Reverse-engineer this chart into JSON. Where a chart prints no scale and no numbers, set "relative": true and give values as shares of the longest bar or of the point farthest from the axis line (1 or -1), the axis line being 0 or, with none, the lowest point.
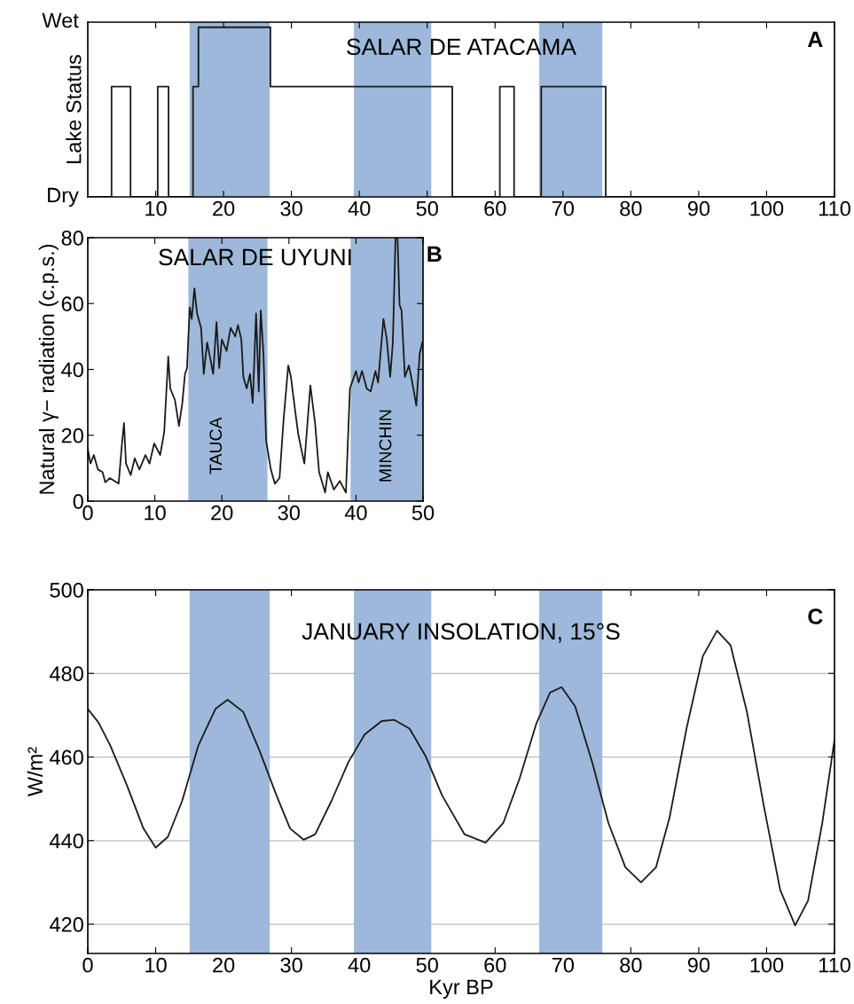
{
  "chart_data": [
    {
      "type": "line",
      "title": "SALAR DE ATACAMA",
      "ylabel": "Lake Status",
      "series": [
        {
          "color": "#1a1a1a",
          "x": [
            0,
            3.5,
            3.5,
            6.3,
            6.3,
            10.3,
            10.3,
            11.9,
            11.9,
            15.5,
            15.5,
            16.3,
            16.3,
            26.9,
            26.9,
            53.7,
            53.7,
            60.7,
            60.7,
            62.8,
            62.8,
            66.8,
            66.8,
            76.3,
            76.3,
            110
          ],
          "values": [
            0,
            0,
            0.65,
            0.65,
            0,
            0,
            0.65,
            0.65,
            0,
            0,
            0.65,
            0.65,
            1,
            1,
            0.65,
            0.65,
            0,
            0,
            0.65,
            0.65,
            0,
            0,
            0.65,
            0.65,
            0,
            0
          ]
        }
      ],
      "relative": true,
      "xlim": [
        0,
        110
      ],
      "xticks": [
        10,
        20,
        30,
        40,
        50,
        60,
        70,
        80,
        90,
        100,
        110
      ],
      "bands": [
        {
          "axis": "x",
          "from": 15.0,
          "to": 26.8,
          "color": "#9db8da"
        },
        {
          "axis": "x",
          "from": 39.2,
          "to": 50.6,
          "color": "#9db8da"
        },
        {
          "axis": "x",
          "from": 66.5,
          "to": 75.8,
          "color": "#9db8da"
        }
      ],
      "annotations": [
        "A",
        "Dry",
        "Wet"
      ]
    },
    {
      "type": "line",
      "title": "SALAR DE UYUNI",
      "ylabel": "Natural γ− radiation (c.p.s.)",
      "series": [
        {
          "color": "#1a1a1a",
          "x": [
            0,
            0.4,
            0.9,
            1.5,
            2.2,
            2.6,
            3.3,
            3.96,
            4.6,
            5.1,
            5.4,
            5.7,
            6.4,
            7.0,
            7.7,
            8.6,
            9.2,
            9.9,
            10.8,
            11.4,
            12.0,
            12.3,
            13.0,
            13.6,
            14.1,
            14.5,
            14.8,
            15.2,
            15.5,
            15.9,
            16.3,
            16.9,
            17.3,
            17.8,
            18.3,
            18.7,
            19.2,
            19.6,
            20.0,
            20.7,
            21.3,
            22.0,
            22.4,
            22.9,
            23.2,
            23.7,
            24.2,
            24.6,
            25.1,
            25.5,
            25.8,
            26.2,
            26.6,
            27.3,
            27.9,
            28.6,
            29.2,
            29.9,
            30.3,
            31.0,
            31.4,
            32.3,
            33.2,
            33.9,
            34.5,
            35.4,
            35.8,
            36.7,
            37.6,
            38.5,
            39.1,
            40.0,
            40.4,
            40.9,
            41.6,
            42.2,
            42.9,
            43.3,
            44.1,
            44.6,
            45.1,
            45.5,
            45.9,
            46.2,
            46.5,
            46.8,
            47.3,
            47.9,
            48.4,
            49.0,
            49.5,
            49.9
          ],
          "values": [
            15.8,
            11.4,
            14,
            9.6,
            8.8,
            5.7,
            7,
            6.1,
            5.3,
            17.5,
            23.7,
            11.4,
            7.9,
            13,
            9.6,
            14,
            11.4,
            17.5,
            14,
            21,
            43.9,
            34.2,
            30.7,
            22.8,
            29.8,
            38.6,
            40.4,
            58.8,
            55.3,
            64.6,
            57,
            52.6,
            38.6,
            48.2,
            43,
            38.6,
            54.4,
            40.4,
            49.1,
            45.6,
            52.6,
            50,
            53.5,
            49.1,
            37.7,
            34.2,
            38.6,
            29.8,
            57,
            33.3,
            57.9,
            44.7,
            18.4,
            9.6,
            5.3,
            7,
            24.6,
            41.2,
            37.7,
            26.3,
            20.2,
            11.4,
            35.1,
            23.7,
            8.8,
            2.6,
            8.8,
            3.5,
            6.1,
            2.6,
            34.2,
            39.5,
            36,
            39.5,
            34.2,
            33.3,
            39.5,
            36,
            55.3,
            49.1,
            37.7,
            48.2,
            80,
            80,
            59.6,
            57.9,
            37.7,
            41.2,
            36,
            29,
            44.7,
            48.2
          ]
        }
      ],
      "xlim": [
        0,
        50
      ],
      "ylim": [
        0,
        80
      ],
      "xticks": [
        0,
        10,
        20,
        30,
        40,
        50
      ],
      "yticks": [
        0,
        20,
        40,
        60,
        80
      ],
      "bands": [
        {
          "axis": "x",
          "from": 15.0,
          "to": 26.8,
          "color": "#9db8da"
        },
        {
          "axis": "x",
          "from": 39.2,
          "to": 50.6,
          "color": "#9db8da"
        }
      ],
      "annotations": [
        "B",
        "TAUCA",
        "MINCHIN"
      ]
    },
    {
      "type": "line",
      "title": "JANUARY INSOLATION, 15°S",
      "xlabel": "Kyr BP",
      "ylabel": "W/m²",
      "series": [
        {
          "color": "#1a1a1a",
          "x": [
            0,
            1.6,
            3.3,
            5.7,
            8.2,
            10.0,
            11.8,
            13.9,
            16.3,
            18.8,
            20.6,
            22.9,
            25.3,
            27.8,
            29.8,
            31.8,
            33.5,
            35.9,
            38.4,
            40.8,
            43.3,
            45.1,
            47.4,
            49.8,
            52.2,
            55.5,
            58.6,
            61.2,
            63.6,
            66.1,
            68.1,
            69.8,
            71.8,
            74.3,
            76.7,
            79.2,
            81.5,
            83.7,
            85.7,
            88.2,
            90.6,
            92.7,
            94.7,
            97.1,
            99.6,
            102.0,
            104.2,
            106.1,
            108.2,
            110.0
          ],
          "values": [
            471.5,
            468.2,
            462.8,
            453.5,
            442.9,
            438.3,
            440.9,
            449.5,
            462.8,
            471.5,
            473.7,
            470.8,
            461.5,
            450.8,
            442.9,
            440.2,
            441.5,
            449.5,
            458.8,
            465.4,
            468.6,
            468.9,
            466.8,
            460.1,
            450.8,
            441.5,
            439.5,
            444.2,
            454.8,
            468.1,
            475.4,
            476.7,
            472.1,
            458.8,
            444.2,
            433.6,
            430.0,
            433.6,
            445.5,
            466.8,
            484.1,
            490.2,
            486.7,
            470.8,
            448.2,
            428.2,
            419.7,
            425.6,
            444.2,
            464.1
          ]
        }
      ],
      "xlim": [
        0,
        110
      ],
      "ylim": [
        413,
        500
      ],
      "xticks": [
        0,
        10,
        20,
        30,
        40,
        50,
        60,
        70,
        80,
        90,
        100,
        110
      ],
      "yticks": [
        420,
        440,
        460,
        480,
        500
      ],
      "grid": "y",
      "bands": [
        {
          "axis": "x",
          "from": 15.0,
          "to": 26.8,
          "color": "#9db8da"
        },
        {
          "axis": "x",
          "from": 39.2,
          "to": 50.6,
          "color": "#9db8da"
        },
        {
          "axis": "x",
          "from": 66.5,
          "to": 75.8,
          "color": "#9db8da"
        }
      ],
      "annotations": [
        "C"
      ]
    }
  ]
}
